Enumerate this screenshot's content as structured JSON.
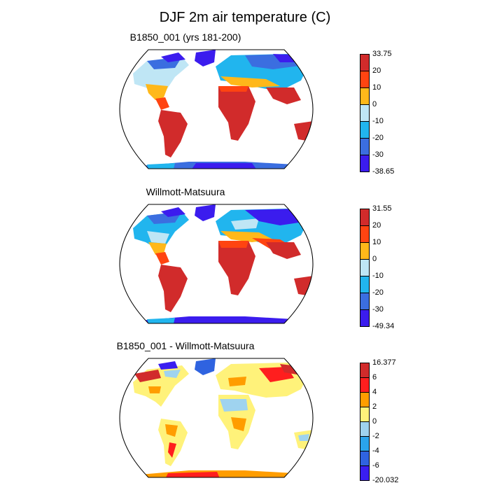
{
  "figure": {
    "title": "DJF 2m air temperature (C)"
  },
  "panels": [
    {
      "title": "B1850_001 (yrs 181-200)",
      "colorbar": {
        "labels": [
          "33.75",
          "20",
          "10",
          "0",
          "-10",
          "-20",
          "-30",
          "-38.65"
        ],
        "colors": [
          "#d12b2b",
          "#ff4411",
          "#ffb81a",
          "#bfe6f5",
          "#21b5ee",
          "#3b6ee0",
          "#3b1cee"
        ]
      }
    },
    {
      "title": "Willmott-Matsuura",
      "colorbar": {
        "labels": [
          "31.55",
          "20",
          "10",
          "0",
          "-10",
          "-20",
          "-30",
          "-49.34"
        ],
        "colors": [
          "#d12b2b",
          "#ff4411",
          "#ffb81a",
          "#bfe6f5",
          "#21b5ee",
          "#3b6ee0",
          "#3b1cee"
        ]
      }
    },
    {
      "title": "B1850_001 - Willmott-Matsuura",
      "colorbar": {
        "labels": [
          "16.377",
          "6",
          "4",
          "2",
          "0",
          "-2",
          "-4",
          "-6",
          "-20.032"
        ],
        "colors": [
          "#d12b2b",
          "#ff1e1e",
          "#ff9d00",
          "#fff27a",
          "#9fd3ef",
          "#2aa4ec",
          "#2f63e0",
          "#3a1ef0"
        ]
      }
    }
  ]
}
